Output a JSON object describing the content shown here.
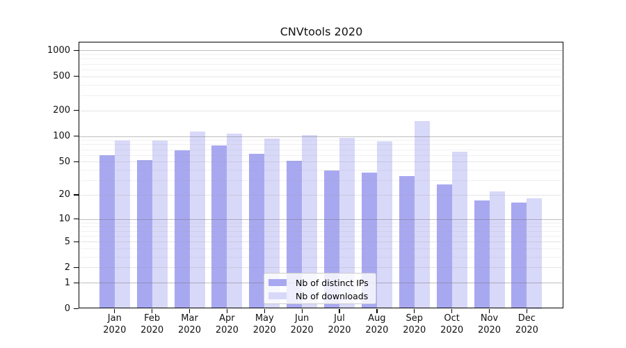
{
  "title": "CNVtools 2020",
  "chart_data": {
    "type": "bar",
    "title": "CNVtools 2020",
    "scale": "log1p",
    "grid": true,
    "ylim": [
      0,
      1260
    ],
    "y_ticks": [
      0,
      1,
      2,
      5,
      10,
      20,
      50,
      100,
      200,
      500,
      1000
    ],
    "y_minor_ticks": [
      3,
      4,
      6,
      7,
      8,
      9,
      30,
      40,
      60,
      70,
      80,
      90,
      300,
      400,
      600,
      700,
      800,
      900
    ],
    "categories": [
      "Jan 2020",
      "Feb 2020",
      "Mar 2020",
      "Apr 2020",
      "May 2020",
      "Jun 2020",
      "Jul 2020",
      "Aug 2020",
      "Sep 2020",
      "Oct 2020",
      "Nov 2020",
      "Dec 2020"
    ],
    "x_tick_month": [
      "Jan",
      "Feb",
      "Mar",
      "Apr",
      "May",
      "Jun",
      "Jul",
      "Aug",
      "Sep",
      "Oct",
      "Nov",
      "Dec"
    ],
    "x_tick_year": "2020",
    "series": [
      {
        "name": "Nb of distinct IPs",
        "color": "#a8a8f1",
        "values": [
          60,
          52,
          68,
          77,
          62,
          51,
          39,
          37,
          34,
          27,
          17,
          16
        ]
      },
      {
        "name": "Nb of downloads",
        "color": "#d8d8f9",
        "values": [
          89,
          88,
          113,
          107,
          93,
          104,
          96,
          87,
          150,
          66,
          22,
          18
        ]
      }
    ],
    "legend": {
      "position": "bottom-center",
      "entries": [
        "Nb of distinct IPs",
        "Nb of downloads"
      ]
    }
  }
}
